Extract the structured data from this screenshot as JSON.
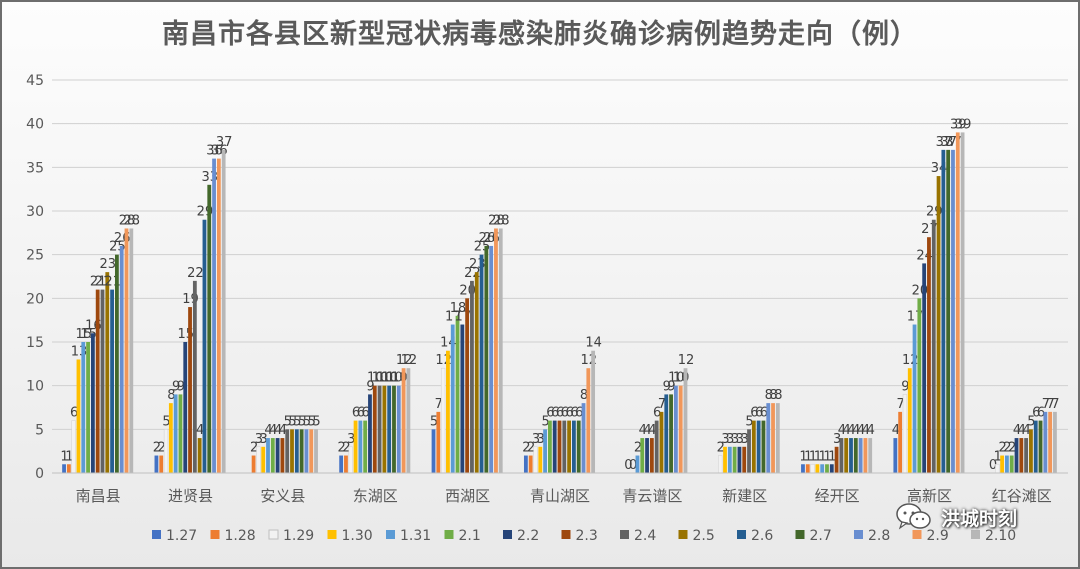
{
  "chart_data": {
    "type": "bar",
    "title": "南昌市各县区新型冠状病毒感染肺炎确诊病例趋势走向（例）",
    "ylim": [
      0,
      45
    ],
    "yticks": [
      0,
      5,
      10,
      15,
      20,
      25,
      30,
      35,
      40,
      45
    ],
    "grid": true,
    "legend_position": "bottom",
    "categories": [
      "南昌县",
      "进贤县",
      "安义县",
      "东湖区",
      "西湖区",
      "青山湖区",
      "青云谱区",
      "新建区",
      "经开区",
      "高新区",
      "红谷滩区"
    ],
    "series": [
      {
        "name": "1.27",
        "color": "#4472c4",
        "values": [
          1,
          2,
          null,
          2,
          5,
          2,
          null,
          null,
          1,
          4,
          null
        ]
      },
      {
        "name": "1.28",
        "color": "#ed7d31",
        "values": [
          1,
          2,
          2,
          2,
          7,
          2,
          null,
          null,
          1,
          7,
          0
        ]
      },
      {
        "name": "1.29",
        "color": "#f2f2f2",
        "values": [
          6,
          5,
          3,
          3,
          12,
          3,
          0,
          2,
          1,
          9,
          1
        ]
      },
      {
        "name": "1.30",
        "color": "#ffc000",
        "values": [
          13,
          8,
          3,
          6,
          14,
          3,
          0,
          3,
          1,
          12,
          2
        ]
      },
      {
        "name": "1.31",
        "color": "#5b9bd5",
        "values": [
          15,
          9,
          4,
          6,
          17,
          5,
          2,
          3,
          1,
          17,
          2
        ]
      },
      {
        "name": "2.1",
        "color": "#70ad47",
        "values": [
          15,
          9,
          4,
          6,
          18,
          6,
          4,
          3,
          1,
          20,
          2
        ]
      },
      {
        "name": "2.2",
        "color": "#264478",
        "values": [
          16,
          15,
          4,
          9,
          17,
          6,
          4,
          3,
          1,
          24,
          4
        ]
      },
      {
        "name": "2.3",
        "color": "#9e480e",
        "values": [
          21,
          19,
          4,
          10,
          20,
          6,
          4,
          3,
          3,
          27,
          4
        ]
      },
      {
        "name": "2.4",
        "color": "#636363",
        "values": [
          21,
          22,
          5,
          10,
          22,
          6,
          6,
          5,
          4,
          29,
          4
        ]
      },
      {
        "name": "2.5",
        "color": "#997300",
        "values": [
          23,
          4,
          5,
          10,
          23,
          6,
          7,
          6,
          4,
          34,
          5
        ]
      },
      {
        "name": "2.6",
        "color": "#255e91",
        "values": [
          21,
          29,
          5,
          10,
          25,
          6,
          9,
          6,
          4,
          37,
          6
        ]
      },
      {
        "name": "2.7",
        "color": "#43682b",
        "values": [
          25,
          33,
          5,
          10,
          26,
          6,
          9,
          6,
          4,
          37,
          6
        ]
      },
      {
        "name": "2.8",
        "color": "#698ed0",
        "values": [
          26,
          36,
          5,
          10,
          26,
          8,
          10,
          8,
          4,
          37,
          7
        ]
      },
      {
        "name": "2.9",
        "color": "#f1975a",
        "values": [
          28,
          36,
          5,
          12,
          28,
          12,
          10,
          8,
          4,
          39,
          7
        ]
      },
      {
        "name": "2.10",
        "color": "#b7b7b7",
        "values": [
          28,
          37,
          5,
          12,
          28,
          14,
          12,
          8,
          4,
          39,
          7
        ]
      }
    ]
  },
  "watermark": {
    "text": "洪城时刻",
    "icon": "wechat-icon"
  }
}
